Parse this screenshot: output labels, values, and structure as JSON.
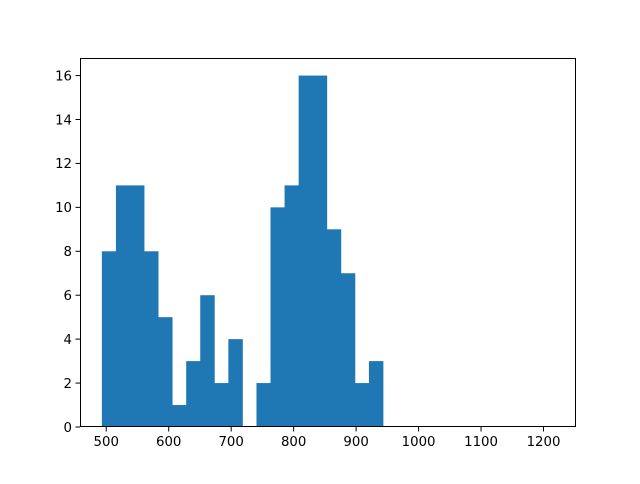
{
  "chart_data": {
    "type": "bar",
    "subtype": "histogram",
    "title": "",
    "xlabel": "",
    "ylabel": "",
    "bin_start": 493,
    "bin_width": 22.5,
    "counts": [
      8,
      11,
      11,
      8,
      5,
      1,
      3,
      6,
      2,
      4,
      0,
      2,
      10,
      11,
      16,
      16,
      9,
      7,
      2,
      3
    ],
    "xlim": [
      458,
      1252
    ],
    "ylim": [
      0,
      16.8
    ],
    "xticks": [
      500,
      600,
      700,
      800,
      900,
      1000,
      1100,
      1200
    ],
    "yticks": [
      0,
      2,
      4,
      6,
      8,
      10,
      12,
      14,
      16
    ],
    "grid": false,
    "legend": "none",
    "bar_color": "#1f77b4"
  }
}
